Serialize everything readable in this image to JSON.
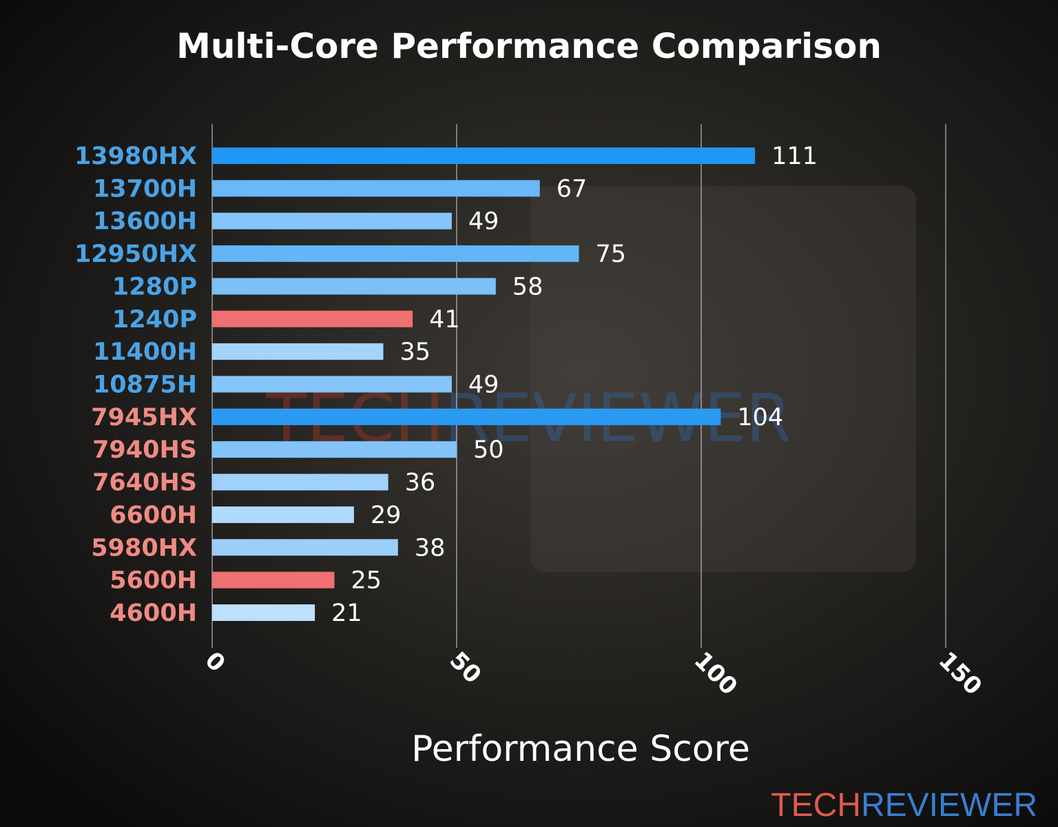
{
  "chart_data": {
    "type": "barh",
    "title": "Multi-Core Performance Comparison",
    "xlabel": "Performance Score",
    "categories": [
      "13980HX",
      "13700H",
      "13600H",
      "12950HX",
      "1280P",
      "1240P",
      "11400H",
      "10875H",
      "7945HX",
      "7940HS",
      "7640HS",
      "6600H",
      "5980HX",
      "5600H",
      "4600H"
    ],
    "values": [
      111,
      67,
      49,
      75,
      58,
      41,
      35,
      49,
      104,
      50,
      36,
      29,
      38,
      25,
      21
    ],
    "colors": [
      "#2196f3",
      "#6bb8f8",
      "#85c5f9",
      "#64b5f6",
      "#7cc0f8",
      "#ef7070",
      "#a5d4fb",
      "#85c5f9",
      "#2b9af3",
      "#82c3f9",
      "#9fd1fa",
      "#b0dafc",
      "#9bcffa",
      "#ef7070",
      "#bde0fd"
    ],
    "label_colors": [
      "#4aa3e6",
      "#4aa3e6",
      "#4aa3e6",
      "#4aa3e6",
      "#4aa3e6",
      "#4aa3e6",
      "#4aa3e6",
      "#4aa3e6",
      "#f08a84",
      "#f08a84",
      "#f08a84",
      "#f08a84",
      "#f08a84",
      "#f08a84",
      "#f08a84"
    ],
    "xlim": [
      0,
      150
    ],
    "xticks": [
      0,
      50,
      100,
      150
    ],
    "grid": true,
    "watermark": [
      "TECH",
      "REVIEWER"
    ]
  }
}
